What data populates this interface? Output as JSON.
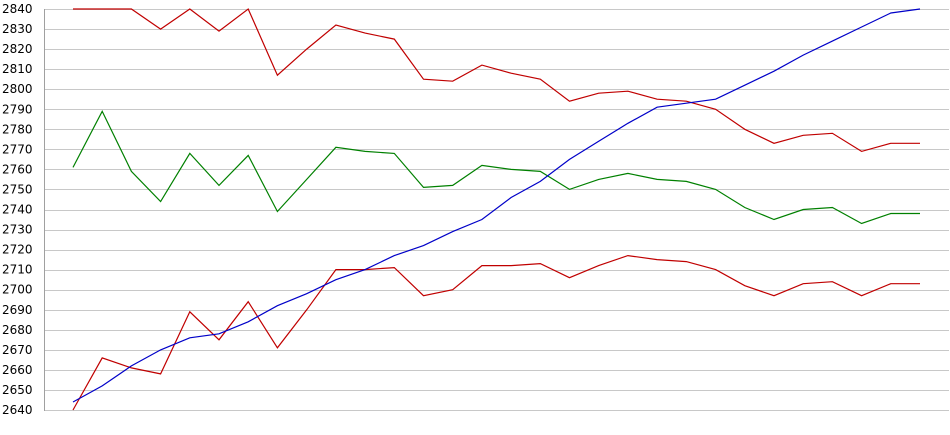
{
  "chart_data": {
    "type": "line",
    "title": "",
    "xlabel": "",
    "ylabel": "",
    "ylim": [
      2640,
      2840
    ],
    "yticks": [
      2840,
      2830,
      2820,
      2810,
      2800,
      2790,
      2780,
      2770,
      2760,
      2750,
      2740,
      2730,
      2720,
      2710,
      2700,
      2690,
      2680,
      2670,
      2660,
      2650,
      2640
    ],
    "grid": true,
    "legend": "none",
    "x": [
      1,
      2,
      3,
      4,
      5,
      6,
      7,
      8,
      9,
      10,
      11,
      12,
      13,
      14,
      15,
      16,
      17,
      18,
      19,
      20,
      21,
      22,
      23,
      24,
      25,
      26,
      27,
      28,
      29,
      30
    ],
    "series": [
      {
        "color": "#c00000",
        "values": [
          2840,
          2840,
          2840,
          2830,
          2840,
          2829,
          2840,
          2807,
          2820,
          2832,
          2828,
          2825,
          2805,
          2804,
          2812,
          2808,
          2805,
          2794,
          2798,
          2799,
          2795,
          2794,
          2790,
          2780,
          2773,
          2777,
          2778,
          2769,
          2773,
          2773
        ]
      },
      {
        "color": "#008000",
        "values": [
          2761,
          2789,
          2759,
          2744,
          2768,
          2752,
          2767,
          2739,
          2755,
          2771,
          2769,
          2768,
          2751,
          2752,
          2762,
          2760,
          2759,
          2750,
          2755,
          2758,
          2755,
          2754,
          2750,
          2741,
          2735,
          2740,
          2741,
          2733,
          2738,
          2738
        ]
      },
      {
        "color": "#c00000",
        "values": [
          2640,
          2666,
          2661,
          2658,
          2689,
          2675,
          2694,
          2671,
          2690,
          2710,
          2710,
          2711,
          2697,
          2700,
          2712,
          2712,
          2713,
          2706,
          2712,
          2717,
          2715,
          2714,
          2710,
          2702,
          2697,
          2703,
          2704,
          2697,
          2703,
          2703
        ]
      },
      {
        "color": "#0000c8",
        "values": [
          2644,
          2652,
          2662,
          2670,
          2676,
          2678,
          2684,
          2692,
          2698,
          2705,
          2710,
          2717,
          2722,
          2729,
          2735,
          2746,
          2754,
          2765,
          2774,
          2783,
          2791,
          2793,
          2795,
          2802,
          2809,
          2817,
          2824,
          2831,
          2838,
          2840
        ]
      }
    ]
  }
}
